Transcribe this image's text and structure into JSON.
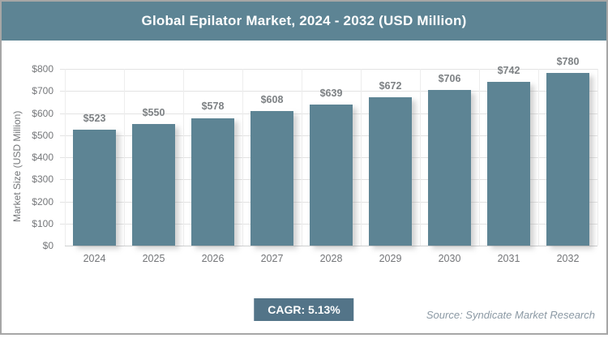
{
  "header": {
    "title": "Global Epilator Market, 2024 - 2032 (USD Million)"
  },
  "chart_data": {
    "type": "bar",
    "title": "Global Epilator Market, 2024 - 2032 (USD Million)",
    "categories": [
      "2024",
      "2025",
      "2026",
      "2027",
      "2028",
      "2029",
      "2030",
      "2031",
      "2032"
    ],
    "values": [
      523,
      550,
      578,
      608,
      639,
      672,
      706,
      742,
      780
    ],
    "value_labels": [
      "$523",
      "$550",
      "$578",
      "$608",
      "$639",
      "$672",
      "$706",
      "$742",
      "$780"
    ],
    "xlabel": "",
    "ylabel": "Market Size (USD Million)",
    "ylim": [
      0,
      800
    ],
    "ytick_step": 100,
    "ytick_labels": [
      "$0",
      "$100",
      "$200",
      "$300",
      "$400",
      "$500",
      "$600",
      "$700",
      "$800"
    ],
    "grid": true,
    "legend": "none"
  },
  "footer": {
    "cagr_label": "CAGR: 5.13%",
    "source": "Source: Syndicate Market Research"
  },
  "colors": {
    "header_bg": "#5d8494",
    "bar": "#5d8494",
    "badge_bg": "#537488",
    "gridline": "#e3e3e3",
    "axis_line": "#cfd0d1",
    "label_text": "#7d8184",
    "tick_text": "#75777a",
    "source_text": "#8b99a4",
    "title_text": "#ffffff",
    "frame_border": "#a6a6a6"
  }
}
